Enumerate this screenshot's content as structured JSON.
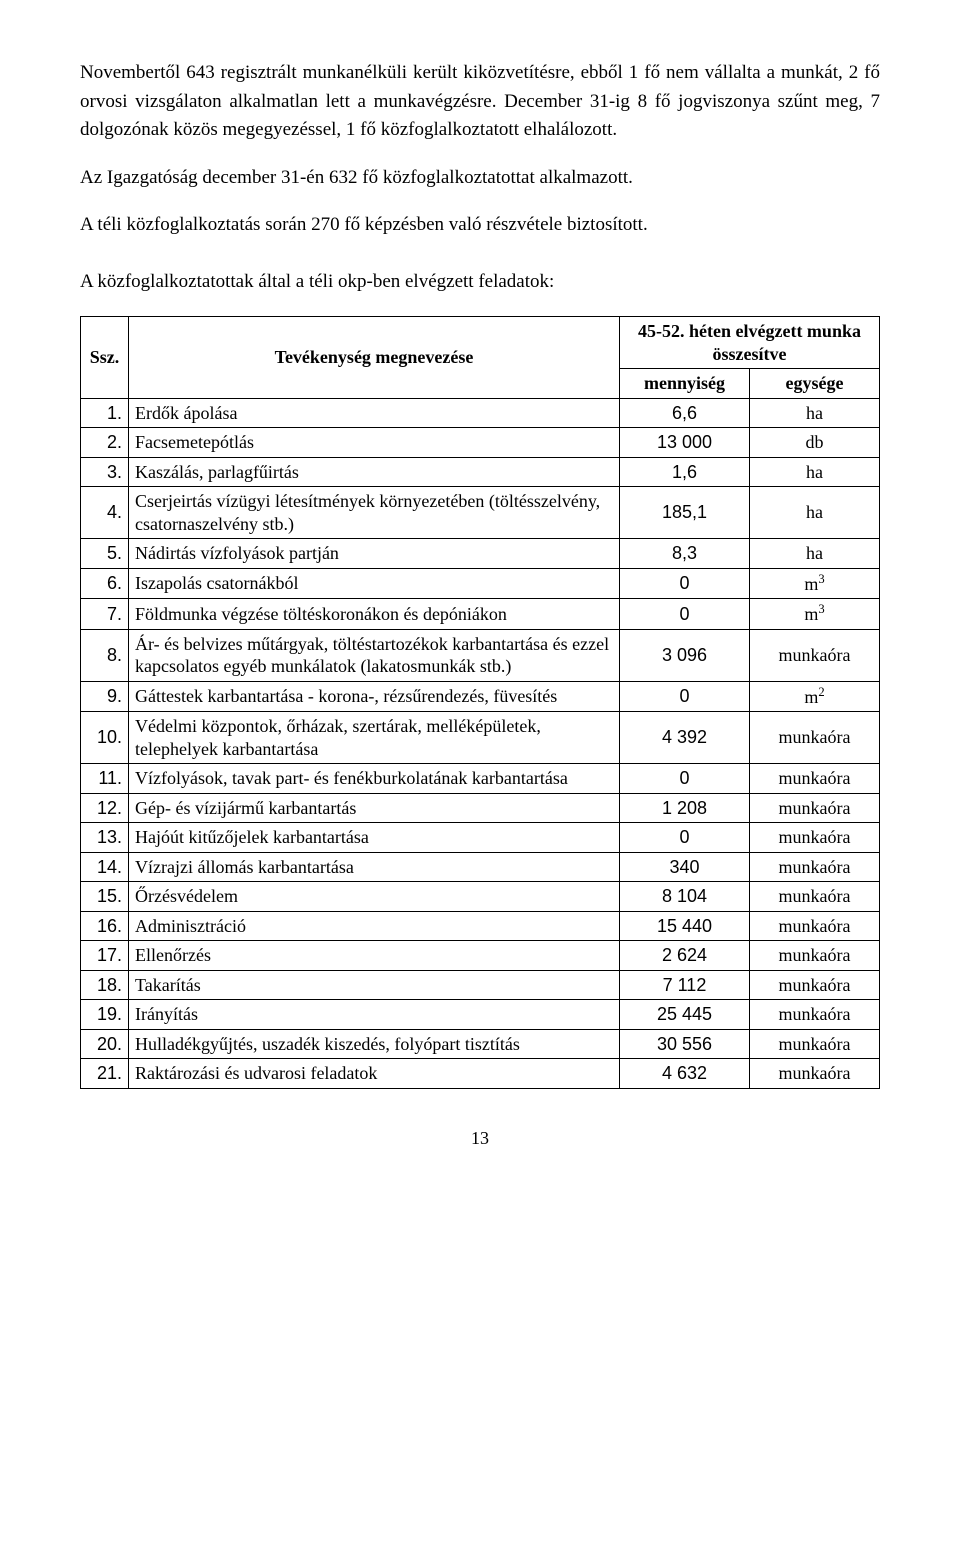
{
  "paragraphs": {
    "p1": "Novembertől 643 regisztrált munkanélküli került kiközvetítésre, ebből 1 fő nem vállalta a munkát, 2 fő orvosi vizsgálaton alkalmatlan lett a munkavégzésre. December 31-ig 8 fő jogviszonya szűnt meg, 7 dolgozónak közös megegyezéssel, 1 fő közfoglalkoztatott elhalálozott.",
    "p2": "Az Igazgatóság december 31-én 632 fő közfoglalkoztatottat alkalmazott.",
    "p3": "A téli közfoglalkoztatás során 270 fő képzésben való részvétele biztosított."
  },
  "table_caption": "A közfoglalkoztatottak által a téli okp-ben  elvégzett feladatok:",
  "headers": {
    "ssz": "Ssz.",
    "tev": "Tevékenység megnevezése",
    "group": "45-52. héten elvégzett munka összesítve",
    "menny": "mennyiség",
    "egys": "egysége"
  },
  "rows": [
    {
      "ssz": "1.",
      "tev": "Erdők ápolása",
      "menny": "6,6",
      "egys": "ha",
      "sans": true
    },
    {
      "ssz": "2.",
      "tev": "Facsemetepótlás",
      "menny": "13 000",
      "egys": "db",
      "sans": true
    },
    {
      "ssz": "3.",
      "tev": "Kaszálás, parlagfűirtás",
      "menny": "1,6",
      "egys": "ha",
      "sans": true
    },
    {
      "ssz": "4.",
      "tev": "Cserjeirtás vízügyi létesítmények környezetében (töltésszelvény, csatornaszelvény stb.)",
      "menny": "185,1",
      "egys": "ha",
      "sans": true
    },
    {
      "ssz": "5.",
      "tev": "Nádirtás vízfolyások partján",
      "menny": "8,3",
      "egys": "ha",
      "sans": true
    },
    {
      "ssz": "6.",
      "tev": "Iszapolás csatornákból",
      "menny": "0",
      "egys": "m3",
      "sans": true,
      "sup": "3"
    },
    {
      "ssz": "7.",
      "tev": "Földmunka végzése töltéskoronákon és depóniákon",
      "menny": "0",
      "egys": "m3",
      "sans": true,
      "sup": "3"
    },
    {
      "ssz": "8.",
      "tev": "Ár- és belvizes műtárgyak, töltéstartozékok karbantartása és ezzel kapcsolatos egyéb munkálatok (lakatosmunkák stb.)",
      "menny": "3 096",
      "egys": "munkaóra",
      "sans": true
    },
    {
      "ssz": "9.",
      "tev": "Gáttestek karbantartása - korona-, rézsűrendezés, füvesítés",
      "menny": "0",
      "egys": "m2",
      "sans": true,
      "sup": "2"
    },
    {
      "ssz": "10.",
      "tev": "Védelmi központok, őrházak, szertárak, melléképületek, telephelyek karbantartása",
      "menny": "4 392",
      "egys": "munkaóra",
      "sans": true
    },
    {
      "ssz": "11.",
      "tev": "Vízfolyások, tavak part- és fenékburkolatának karbantartása",
      "menny": "0",
      "egys": "munkaóra",
      "sans": true
    },
    {
      "ssz": "12.",
      "tev": "Gép- és vízijármű karbantartás",
      "menny": "1 208",
      "egys": "munkaóra",
      "sans": true
    },
    {
      "ssz": "13.",
      "tev": "Hajóút kitűzőjelek karbantartása",
      "menny": "0",
      "egys": "munkaóra",
      "sans": true
    },
    {
      "ssz": "14.",
      "tev": "Vízrajzi állomás karbantartása",
      "menny": "340",
      "egys": "munkaóra",
      "sans": true
    },
    {
      "ssz": "15.",
      "tev": "Őrzésvédelem",
      "menny": "8 104",
      "egys": "munkaóra",
      "sans": true
    },
    {
      "ssz": "16.",
      "tev": "Adminisztráció",
      "menny": "15 440",
      "egys": "munkaóra",
      "sans": true
    },
    {
      "ssz": "17.",
      "tev": "Ellenőrzés",
      "menny": "2 624",
      "egys": "munkaóra",
      "sans": true
    },
    {
      "ssz": "18.",
      "tev": "Takarítás",
      "menny": "7 112",
      "egys": "munkaóra",
      "sans": true
    },
    {
      "ssz": "19.",
      "tev": "Irányítás",
      "menny": "25 445",
      "egys": "munkaóra",
      "sans": true
    },
    {
      "ssz": "20.",
      "tev": "Hulladékgyűjtés, uszadék kiszedés, folyópart tisztítás",
      "menny": "30 556",
      "egys": "munkaóra",
      "sans": true
    },
    {
      "ssz": "21.",
      "tev": "Raktározási és udvarosi feladatok",
      "menny": "4 632",
      "egys": "munkaóra",
      "sans": true
    }
  ],
  "page_number": "13"
}
